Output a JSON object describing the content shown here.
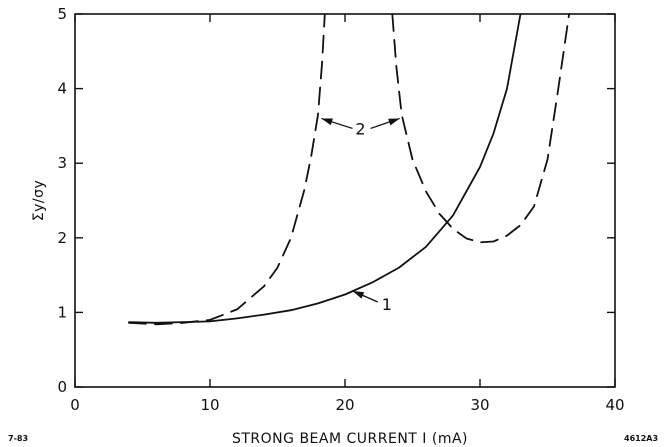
{
  "chart_data": {
    "type": "line",
    "xlabel": "STRONG BEAM CURRENT I  (mA)",
    "ylabel": "Σy/σy",
    "xlim": [
      0,
      40
    ],
    "ylim": [
      0,
      5
    ],
    "xticks": [
      "0",
      "10",
      "20",
      "30",
      "40"
    ],
    "yticks": [
      "0",
      "1",
      "2",
      "3",
      "4",
      "5"
    ],
    "grid": false,
    "series": [
      {
        "name": "1",
        "style": "solid",
        "x": [
          4,
          6,
          8,
          10,
          12,
          14,
          16,
          18,
          20,
          22,
          24,
          26,
          28,
          30,
          31,
          32,
          33
        ],
        "y": [
          0.87,
          0.86,
          0.87,
          0.88,
          0.92,
          0.97,
          1.03,
          1.12,
          1.24,
          1.4,
          1.6,
          1.88,
          2.3,
          2.95,
          3.4,
          4.0,
          5.0
        ]
      },
      {
        "name": "2",
        "style": "dashed",
        "segments": [
          {
            "x": [
              4,
              6,
              8,
              10,
              12,
              14,
              15,
              16,
              17,
              17.5,
              18,
              18.3,
              18.5
            ],
            "y": [
              0.86,
              0.84,
              0.86,
              0.9,
              1.04,
              1.35,
              1.6,
              2.0,
              2.65,
              3.1,
              3.65,
              4.35,
              5.0
            ]
          },
          {
            "x": [
              23.5,
              23.8,
              24.2,
              25,
              26,
              27,
              28,
              29,
              30,
              31,
              32,
              33,
              34,
              35,
              35.8,
              36.6
            ],
            "y": [
              5.0,
              4.3,
              3.65,
              3.05,
              2.62,
              2.32,
              2.12,
              1.99,
              1.94,
              1.95,
              2.03,
              2.17,
              2.42,
              3.05,
              4.0,
              5.0
            ]
          }
        ]
      }
    ],
    "annotations": [
      {
        "text": "1",
        "target": [
          20.5,
          1.3
        ]
      },
      {
        "text": "2",
        "targets": [
          [
            18.1,
            3.6
          ],
          [
            24.2,
            3.6
          ]
        ]
      }
    ],
    "corner_labels": {
      "left": "7-83",
      "right": "4612A3"
    }
  }
}
